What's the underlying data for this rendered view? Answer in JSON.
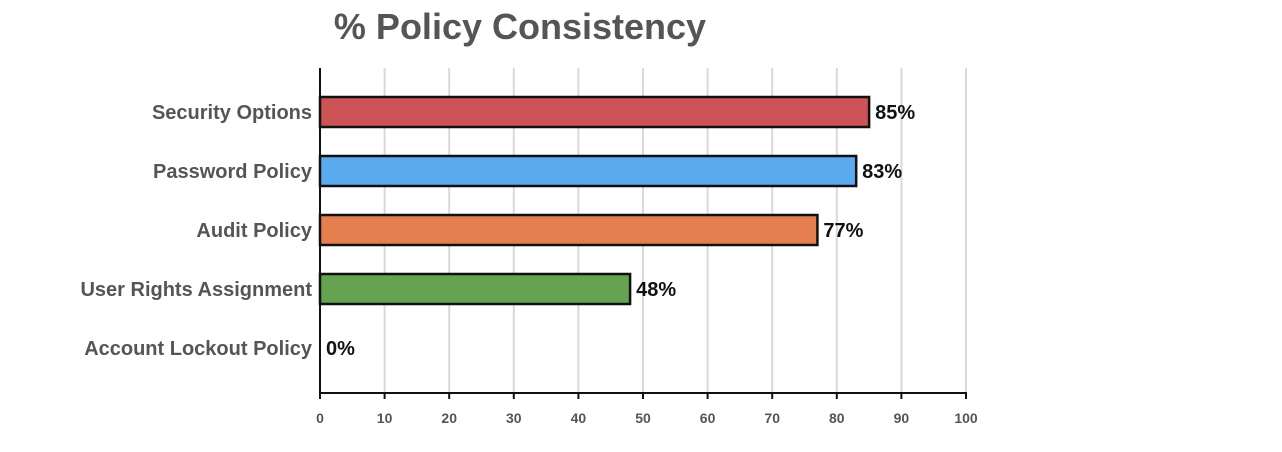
{
  "chart_data": {
    "type": "bar",
    "orientation": "horizontal",
    "title": "% Policy Consistency",
    "xlabel": "",
    "ylabel": "",
    "categories": [
      "Security Options",
      "Password Policy",
      "Audit Policy",
      "User Rights Assignment",
      "Account Lockout Policy"
    ],
    "values": [
      85,
      83,
      77,
      48,
      0
    ],
    "value_labels": [
      "85%",
      "83%",
      "77%",
      "48%",
      "0%"
    ],
    "colors": [
      "#cd5456",
      "#5aaaf0",
      "#e57f50",
      "#66a350",
      "#999999"
    ],
    "xlim": [
      0,
      100
    ],
    "xticks": [
      0,
      10,
      20,
      30,
      40,
      50,
      60,
      70,
      80,
      90,
      100
    ],
    "grid": "vertical",
    "legend": "none"
  }
}
